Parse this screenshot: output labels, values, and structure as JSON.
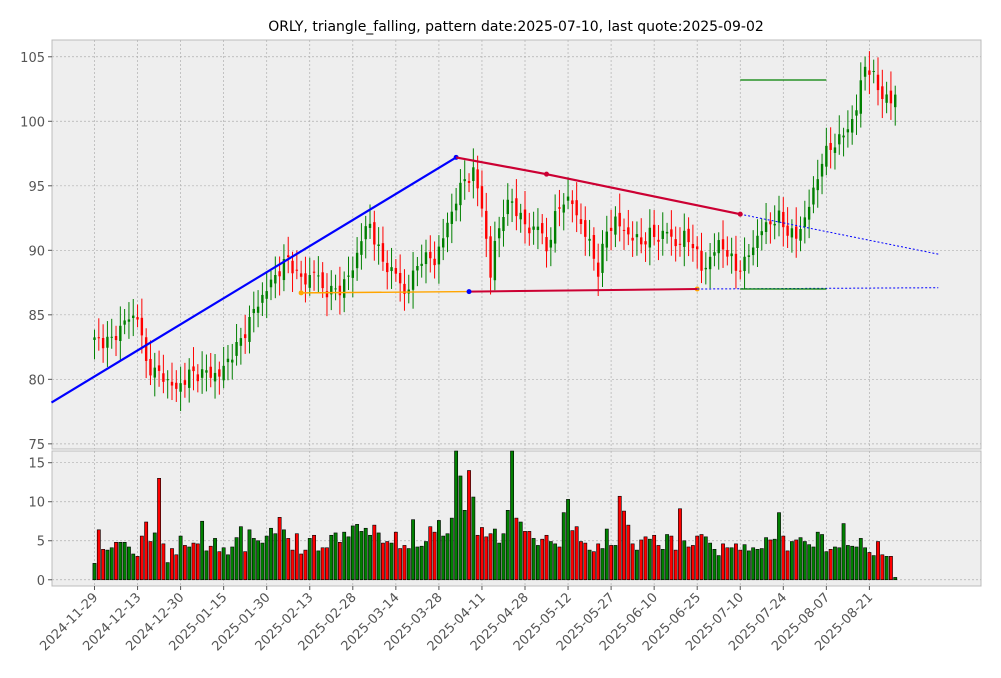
{
  "chart_data": {
    "type": "candlestick",
    "title": "ORLY, triangle_falling, pattern date:2025-07-10, last quote:2025-09-02",
    "colors": {
      "up": "#008000",
      "down": "#ff0000",
      "panel_bg": "#eeeeee",
      "grid": "#b0b0b0",
      "support_line": "#0000ff",
      "resistance_line": "#cc0033",
      "base_line": "#ffa500",
      "target_line": "#008000"
    },
    "price_axis": {
      "ylim": [
        74.6,
        106.3
      ],
      "ticks": [
        75,
        80,
        85,
        90,
        95,
        100,
        105
      ]
    },
    "volume_axis": {
      "ylim": [
        -0.8,
        16.5
      ],
      "ticks": [
        0,
        5,
        10,
        15
      ]
    },
    "x_ticks": [
      "2024-11-29",
      "2024-12-13",
      "2024-12-30",
      "2025-01-15",
      "2025-01-30",
      "2025-02-13",
      "2025-02-28",
      "2025-03-14",
      "2025-03-28",
      "2025-04-11",
      "2025-04-28",
      "2025-05-12",
      "2025-05-27",
      "2025-06-10",
      "2025-06-25",
      "2025-07-10",
      "2025-07-24",
      "2025-08-07",
      "2025-08-21"
    ],
    "close_anchors": [
      [
        0,
        83.0
      ],
      [
        4,
        83.0
      ],
      [
        7,
        84.5
      ],
      [
        10,
        85.0
      ],
      [
        12,
        81.2
      ],
      [
        14,
        80.6
      ],
      [
        16,
        80.2
      ],
      [
        19,
        79.2
      ],
      [
        22,
        80.4
      ],
      [
        26,
        80.5
      ],
      [
        29,
        80.3
      ],
      [
        31,
        81.5
      ],
      [
        34,
        83.0
      ],
      [
        37,
        85.3
      ],
      [
        40,
        87.0
      ],
      [
        43,
        88.5
      ],
      [
        45,
        89.3
      ],
      [
        47,
        88.2
      ],
      [
        49,
        87.5
      ],
      [
        51,
        88.5
      ],
      [
        53,
        87.0
      ],
      [
        55,
        86.8
      ],
      [
        57,
        87.0
      ],
      [
        60,
        88.5
      ],
      [
        62,
        91.0
      ],
      [
        64,
        92.0
      ],
      [
        67,
        89.0
      ],
      [
        70,
        88.2
      ],
      [
        72,
        86.6
      ],
      [
        74,
        88.0
      ],
      [
        76,
        89.5
      ],
      [
        79,
        89.2
      ],
      [
        81,
        91.0
      ],
      [
        84,
        94.0
      ],
      [
        86,
        95.5
      ],
      [
        88,
        96.0
      ],
      [
        90,
        93.5
      ],
      [
        92,
        88.0
      ],
      [
        93,
        90.5
      ],
      [
        95,
        93.0
      ],
      [
        97,
        93.8
      ],
      [
        99,
        92.5
      ],
      [
        101,
        91.5
      ],
      [
        103,
        92.0
      ],
      [
        105,
        90.0
      ],
      [
        107,
        92.5
      ],
      [
        109,
        94.0
      ],
      [
        111,
        93.6
      ],
      [
        113,
        92.0
      ],
      [
        115,
        90.5
      ],
      [
        117,
        88.4
      ],
      [
        119,
        91.5
      ],
      [
        121,
        92.3
      ],
      [
        123,
        91.5
      ],
      [
        125,
        91.0
      ],
      [
        127,
        90.6
      ],
      [
        129,
        91.2
      ],
      [
        131,
        91.0
      ],
      [
        133,
        91.5
      ],
      [
        135,
        90.4
      ],
      [
        137,
        91.0
      ],
      [
        139,
        90.6
      ],
      [
        141,
        88.5
      ],
      [
        143,
        89.3
      ],
      [
        145,
        90.6
      ],
      [
        147,
        89.8
      ],
      [
        149,
        88.6
      ],
      [
        151,
        89.0
      ],
      [
        153,
        90.4
      ],
      [
        155,
        91.6
      ],
      [
        157,
        92.2
      ],
      [
        159,
        92.5
      ],
      [
        161,
        91.5
      ],
      [
        163,
        91.0
      ],
      [
        165,
        92.5
      ],
      [
        167,
        94.5
      ],
      [
        169,
        97.0
      ],
      [
        171,
        98.0
      ],
      [
        173,
        98.6
      ],
      [
        175,
        99.4
      ],
      [
        177,
        101.0
      ],
      [
        179,
        104.5
      ],
      [
        181,
        103.3
      ],
      [
        183,
        102.0
      ],
      [
        185,
        101.5
      ],
      [
        187,
        102.5
      ],
      [
        189,
        104.0
      ],
      [
        191,
        102.2
      ],
      [
        193,
        103.2
      ],
      [
        195,
        103.6
      ],
      [
        196,
        103.4
      ]
    ],
    "volume_values": [
      2.1,
      6.4,
      3.9,
      3.8,
      4.1,
      4.8,
      4.8,
      4.8,
      4.2,
      3.3,
      3.0,
      5.6,
      7.4,
      4.9,
      6.0,
      13.0,
      4.6,
      2.2,
      4.0,
      3.2,
      5.6,
      4.4,
      4.2,
      4.7,
      4.6,
      7.5,
      3.7,
      4.3,
      5.3,
      3.6,
      4.1,
      3.2,
      4.2,
      5.4,
      6.8,
      3.6,
      6.4,
      5.3,
      5.0,
      4.7,
      5.6,
      6.6,
      5.9,
      8.0,
      6.4,
      5.3,
      3.8,
      5.9,
      3.3,
      3.8,
      5.3,
      5.7,
      3.7,
      4.1,
      4.1,
      5.7,
      6.0,
      4.8,
      6.1,
      5.5,
      6.9,
      7.1,
      6.2,
      6.6,
      5.7,
      7.0,
      6.0,
      4.7,
      4.9,
      4.7,
      6.1,
      4.0,
      4.4,
      4.0,
      7.7,
      4.2,
      4.3,
      4.9,
      6.8,
      6.1,
      7.6,
      5.6,
      5.9,
      7.9,
      16.5,
      13.3,
      8.9,
      14.0,
      10.6,
      5.7,
      6.7,
      5.5,
      5.9,
      6.5,
      4.7,
      5.9,
      8.9,
      16.5,
      7.9,
      7.4,
      6.2,
      6.2,
      5.3,
      4.4,
      5.2,
      5.7,
      4.9,
      4.6,
      4.2,
      8.6,
      10.3,
      6.3,
      6.8,
      4.9,
      4.7,
      3.8,
      3.6,
      4.6,
      4.0,
      6.5,
      4.4,
      4.4,
      10.7,
      8.8,
      7.0,
      4.6,
      3.8,
      5.1,
      5.5,
      5.2,
      5.7,
      4.4,
      3.9,
      5.8,
      5.6,
      3.8,
      9.1,
      5.0,
      4.2,
      4.4,
      5.6,
      5.8,
      5.5,
      4.7,
      3.9,
      3.1,
      4.6,
      4.1,
      4.1,
      4.6,
      3.8,
      4.5,
      3.7,
      4.1,
      3.9,
      4.0,
      5.4,
      5.1,
      5.2,
      8.6,
      5.6,
      3.7,
      4.9,
      5.1,
      5.4,
      4.9,
      4.5,
      4.2,
      6.1,
      5.8,
      3.6,
      3.9,
      4.2,
      4.1,
      7.2,
      4.4,
      4.3,
      4.2,
      5.3,
      4.1,
      3.5,
      3.1,
      4.9,
      3.2,
      3.0,
      3.0,
      0.3
    ],
    "overlays": {
      "support_line": {
        "points": [
          [
            -10,
            78.2
          ],
          [
            84,
            97.2
          ]
        ]
      },
      "resistance_line": {
        "points": [
          [
            84,
            97.2
          ],
          [
            105,
            95.9
          ],
          [
            150,
            92.8
          ]
        ],
        "dotted_extension_to": [
          196,
          89.7
        ]
      },
      "base_line": {
        "points": [
          [
            48,
            86.7
          ],
          [
            87,
            86.8
          ],
          [
            140,
            87.0
          ]
        ]
      },
      "base_line_red": {
        "points": [
          [
            87,
            86.8
          ],
          [
            140,
            87.0
          ]
        ],
        "dotted_extension_to": [
          196,
          87.1
        ]
      },
      "target_upper": {
        "x": [
          150,
          170
        ],
        "y": 103.2
      },
      "target_lower": {
        "x": [
          150,
          170
        ],
        "y": 87.0
      }
    }
  }
}
